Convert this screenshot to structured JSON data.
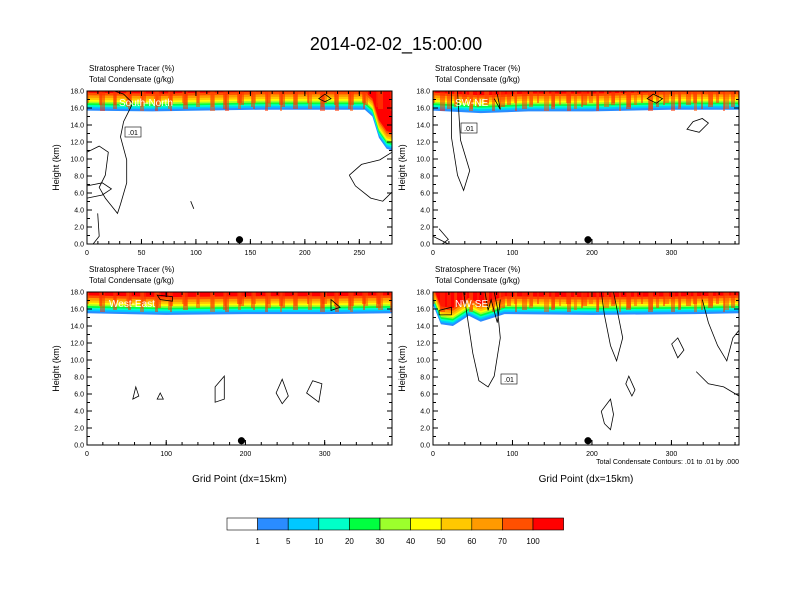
{
  "figure": {
    "title": "2014-02-02_15:00:00",
    "footnote": "Total Condensate Contours: .01 to .01 by .000"
  },
  "colorbar": {
    "colors": [
      "#ffffff",
      "#2a8cff",
      "#00c8ff",
      "#00ffc8",
      "#00ff40",
      "#9cff2c",
      "#ffff00",
      "#ffc800",
      "#ff9a00",
      "#ff5000",
      "#ff0000"
    ],
    "labels": [
      "1",
      "5",
      "10",
      "20",
      "30",
      "40",
      "50",
      "60",
      "70",
      "100"
    ]
  },
  "chart_data": [
    {
      "type": "heatmap",
      "subtitle_1": "Stratosphere Tracer   (%)",
      "subtitle_2": "Total Condensate   (g/kg)",
      "label": "South-North",
      "xlabel": "",
      "ylabel": "Height (km)",
      "xlim": [
        0,
        280
      ],
      "ylim": [
        0,
        18
      ],
      "xticks": [
        0,
        50,
        100,
        150,
        200,
        250
      ],
      "yticks": [
        "0.0",
        "2.0",
        "4.0",
        "6.0",
        "8.0",
        "10.0",
        "12.0",
        "14.0",
        "16.0",
        "18.0"
      ],
      "tracer_base_km": [
        [
          0,
          15.7
        ],
        [
          60,
          15.6
        ],
        [
          160,
          15.8
        ],
        [
          255,
          15.8
        ],
        [
          262,
          15.0
        ],
        [
          268,
          12.5
        ],
        [
          275,
          11.2
        ],
        [
          280,
          11.0
        ]
      ],
      "contour_label": ".01",
      "marker_x": 140
    },
    {
      "type": "heatmap",
      "subtitle_1": "Stratosphere Tracer   (%)",
      "subtitle_2": "Total Condensate   (g/kg)",
      "label": "SW-NE",
      "xlabel": "",
      "ylabel": "Height (km)",
      "xlim": [
        0,
        385
      ],
      "ylim": [
        0,
        18
      ],
      "xticks": [
        0,
        100,
        200,
        300
      ],
      "yticks": [
        "0.0",
        "2.0",
        "4.0",
        "6.0",
        "8.0",
        "10.0",
        "12.0",
        "14.0",
        "16.0",
        "18.0"
      ],
      "tracer_base_km": [
        [
          0,
          15.7
        ],
        [
          60,
          15.4
        ],
        [
          120,
          15.6
        ],
        [
          200,
          15.6
        ],
        [
          300,
          15.8
        ],
        [
          385,
          15.8
        ]
      ],
      "contour_label": ".01",
      "marker_x": 195
    },
    {
      "type": "heatmap",
      "subtitle_1": "Stratosphere Tracer   (%)",
      "subtitle_2": "Total Condensate   (g/kg)",
      "label": "West-East",
      "xlabel": "Grid Point (dx=15km)",
      "ylabel": "Height (km)",
      "xlim": [
        0,
        385
      ],
      "ylim": [
        0,
        18
      ],
      "xticks": [
        0,
        100,
        200,
        300
      ],
      "yticks": [
        "0.0",
        "2.0",
        "4.0",
        "6.0",
        "8.0",
        "10.0",
        "12.0",
        "14.0",
        "16.0",
        "18.0"
      ],
      "tracer_base_km": [
        [
          0,
          15.5
        ],
        [
          100,
          15.3
        ],
        [
          200,
          15.4
        ],
        [
          300,
          15.4
        ],
        [
          385,
          15.5
        ]
      ],
      "contour_label": "",
      "marker_x": 195
    },
    {
      "type": "heatmap",
      "subtitle_1": "Stratosphere Tracer   (%)",
      "subtitle_2": "Total Condensate   (g/kg)",
      "label": "NW-SE",
      "xlabel": "Grid Point (dx=15km)",
      "ylabel": "Height (km)",
      "xlim": [
        0,
        385
      ],
      "ylim": [
        0,
        18
      ],
      "xticks": [
        0,
        100,
        200,
        300
      ],
      "yticks": [
        "0.0",
        "2.0",
        "4.0",
        "6.0",
        "8.0",
        "10.0",
        "12.0",
        "14.0",
        "16.0",
        "18.0"
      ],
      "tracer_base_km": [
        [
          0,
          16.5
        ],
        [
          10,
          14.2
        ],
        [
          25,
          14.0
        ],
        [
          45,
          15.2
        ],
        [
          60,
          14.5
        ],
        [
          90,
          15.4
        ],
        [
          200,
          15.3
        ],
        [
          330,
          15.4
        ],
        [
          385,
          15.5
        ]
      ],
      "contour_label": ".01",
      "marker_x": 195
    }
  ]
}
